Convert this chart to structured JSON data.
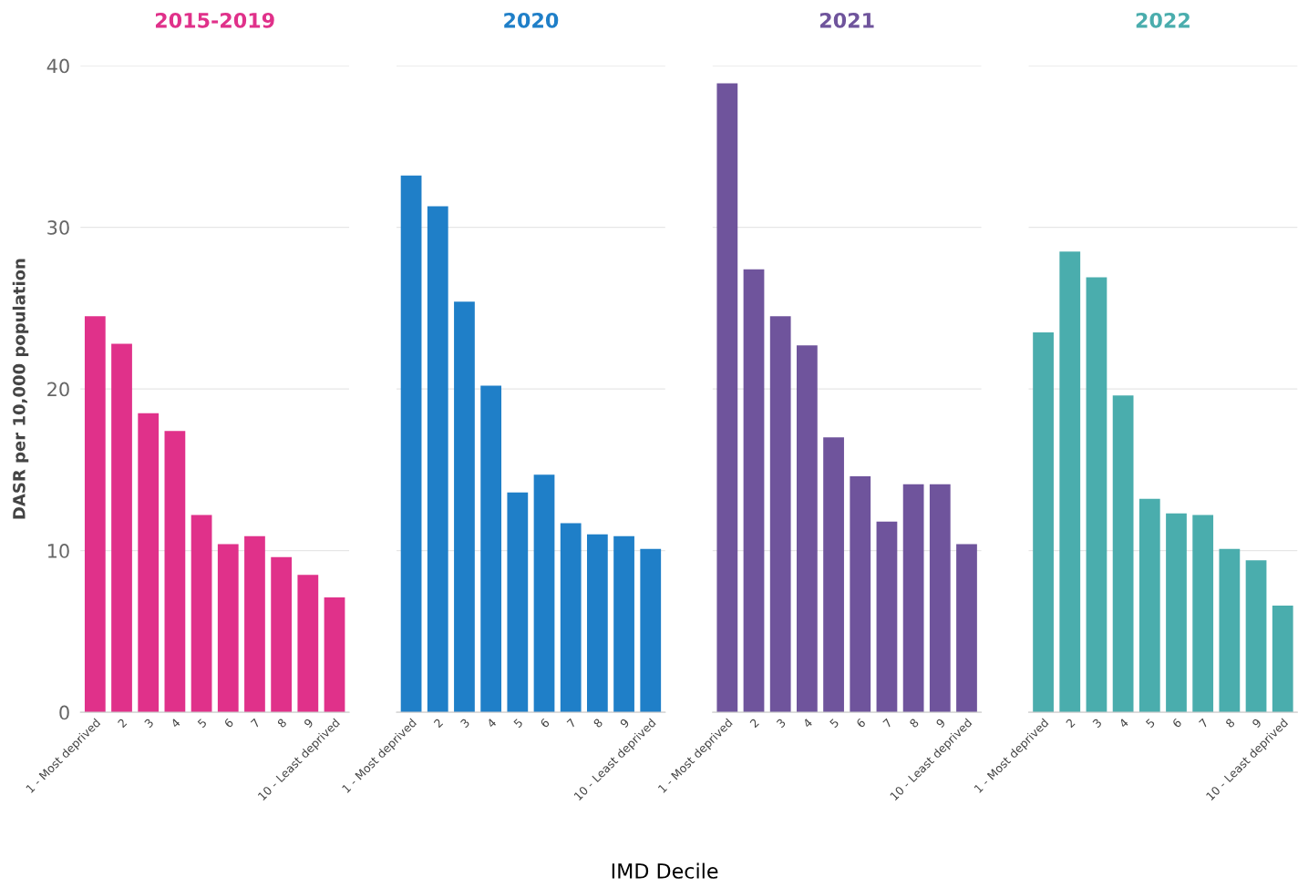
{
  "chart_data": [
    {
      "type": "bar",
      "title": "2015-2019",
      "ylabel": "DASR per 10,000 population",
      "categories": [
        "1 - Most deprived",
        "2",
        "3",
        "4",
        "5",
        "6",
        "7",
        "8",
        "9",
        "10 - Least deprived"
      ],
      "series": [
        {
          "color": "#e0318a",
          "values": [
            24.5,
            22.8,
            18.5,
            17.4,
            12.2,
            10.4,
            10.9,
            9.6,
            8.5,
            7.1
          ]
        }
      ],
      "ylim": [
        0,
        40
      ],
      "yticks": [
        0,
        10,
        20,
        30,
        40
      ],
      "grid": "y",
      "annotations": [
        "IMD Decile"
      ]
    },
    {
      "type": "bar",
      "title": "2020",
      "categories": [
        "1 - Most deprived",
        "2",
        "3",
        "4",
        "5",
        "6",
        "7",
        "8",
        "9",
        "10 - Least deprived"
      ],
      "series": [
        {
          "color": "#1f7fc8",
          "values": [
            33.2,
            31.3,
            25.4,
            20.2,
            13.6,
            14.7,
            11.7,
            11.0,
            10.9,
            10.1
          ]
        }
      ],
      "ylim": [
        0,
        40
      ],
      "yticks": [
        0,
        10,
        20,
        30,
        40
      ],
      "grid": "y",
      "tick_labels": "x"
    },
    {
      "type": "bar",
      "title": "2021",
      "categories": [
        "1 - Most deprived",
        "2",
        "3",
        "4",
        "5",
        "6",
        "7",
        "8",
        "9",
        "10 - Least deprived"
      ],
      "series": [
        {
          "color": "#6f549c",
          "values": [
            38.9,
            27.4,
            24.5,
            22.7,
            17.0,
            14.6,
            11.8,
            14.1,
            14.1,
            10.4
          ]
        }
      ],
      "ylim": [
        0,
        40
      ],
      "yticks": [
        0,
        10,
        20,
        30,
        40
      ],
      "grid": "y",
      "tick_labels": "x"
    },
    {
      "type": "bar",
      "title": "2022",
      "categories": [
        "1 - Most deprived",
        "2",
        "3",
        "4",
        "5",
        "6",
        "7",
        "8",
        "9",
        "10 - Least deprived"
      ],
      "series": [
        {
          "color": "#4aadad",
          "values": [
            23.5,
            28.5,
            26.9,
            19.6,
            13.2,
            12.3,
            12.2,
            10.1,
            9.4,
            6.6
          ]
        }
      ],
      "ylim": [
        0,
        40
      ],
      "yticks": [
        0,
        10,
        20,
        30,
        40
      ],
      "grid": "y",
      "tick_labels": "x"
    }
  ]
}
